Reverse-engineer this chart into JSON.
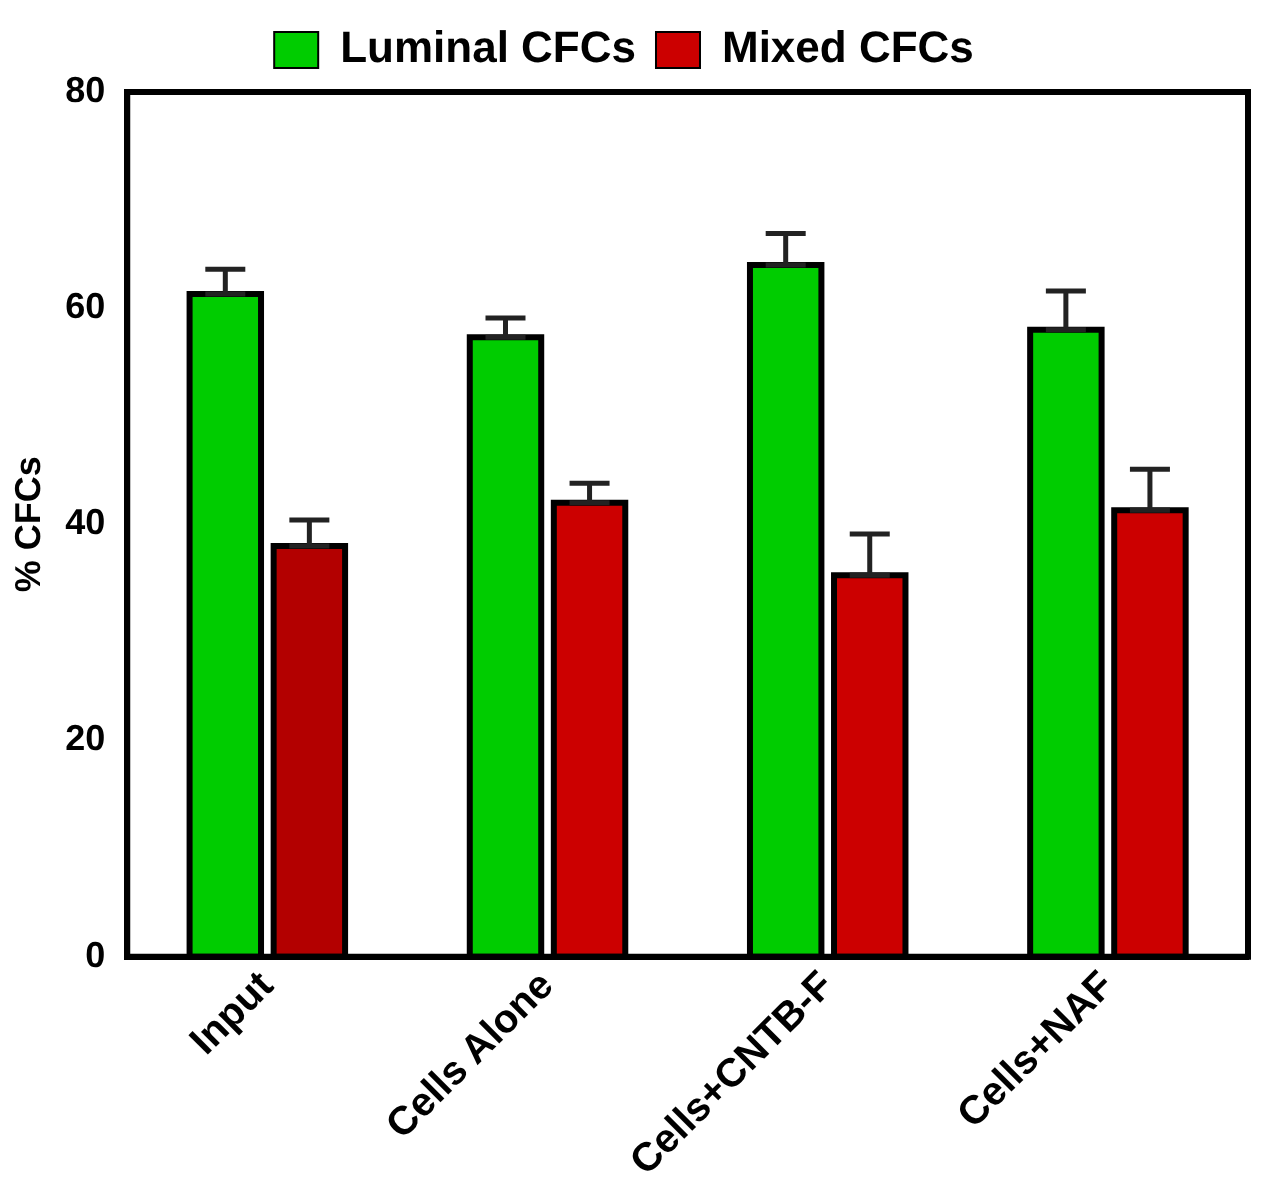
{
  "chart_data": {
    "type": "bar",
    "ylabel": "% CFCs",
    "categories": [
      "Input",
      "Cells Alone",
      "Cells+CNTB-F",
      "Cells+NAF"
    ],
    "series": [
      {
        "name": "Luminal CFCs",
        "color": "#00cc00",
        "values": [
          61.3,
          57.3,
          64.0,
          58.0
        ],
        "errors": [
          [
            61.3,
            63.6
          ],
          [
            57.3,
            59.1
          ],
          [
            64.0,
            66.9
          ],
          [
            58.0,
            61.6
          ]
        ]
      },
      {
        "name": "Mixed CFCs",
        "color": "#cc0000",
        "colors": [
          "#b30000",
          "#cc0000",
          "#cc0000",
          "#cc0000"
        ],
        "values": [
          38.0,
          42.0,
          35.3,
          41.3
        ],
        "errors": [
          [
            38.0,
            40.4
          ],
          [
            42.0,
            43.8
          ],
          [
            35.3,
            39.1
          ],
          [
            41.3,
            45.1
          ]
        ]
      }
    ],
    "ylim": [
      0,
      80
    ],
    "yticks": [
      0,
      20,
      40,
      60,
      80
    ],
    "grid": false,
    "legend": "top"
  }
}
